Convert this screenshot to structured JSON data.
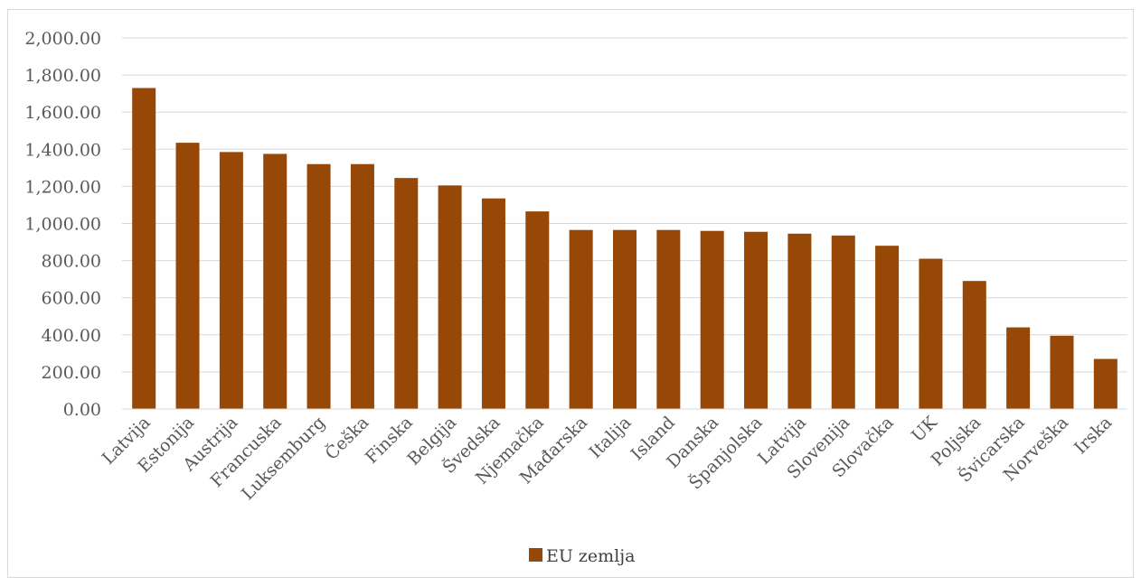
{
  "chart_data": {
    "type": "bar",
    "title": "",
    "xlabel": "",
    "ylabel": "",
    "categories": [
      "Latvija",
      "Estonija",
      "Austrija",
      "Francuska",
      "Luksemburg",
      "Češka",
      "Finska",
      "Belgija",
      "Švedska",
      "Njemačka",
      "Mađarska",
      "Italija",
      "Island",
      "Danska",
      "Španjolska",
      "Latvija",
      "Slovenija",
      "Slovačka",
      "UK",
      "Poljska",
      "Švicarska",
      "Norveška",
      "Irska"
    ],
    "series": [
      {
        "name": "EU zemlja",
        "values": [
          1730,
          1435,
          1385,
          1375,
          1320,
          1320,
          1245,
          1205,
          1135,
          1065,
          965,
          965,
          965,
          960,
          955,
          945,
          935,
          880,
          810,
          690,
          440,
          395,
          270
        ],
        "color": "#974706"
      }
    ],
    "ylim": [
      0,
      2000
    ],
    "yticks": [
      0,
      200,
      400,
      600,
      800,
      1000,
      1200,
      1400,
      1600,
      1800,
      2000
    ],
    "ytick_labels": [
      "0.00",
      "200.00",
      "400.00",
      "600.00",
      "800.00",
      "1,000.00",
      "1,200.00",
      "1,400.00",
      "1,600.00",
      "1,800.00",
      "2,000.00"
    ],
    "grid": true,
    "legend_position": "bottom"
  }
}
